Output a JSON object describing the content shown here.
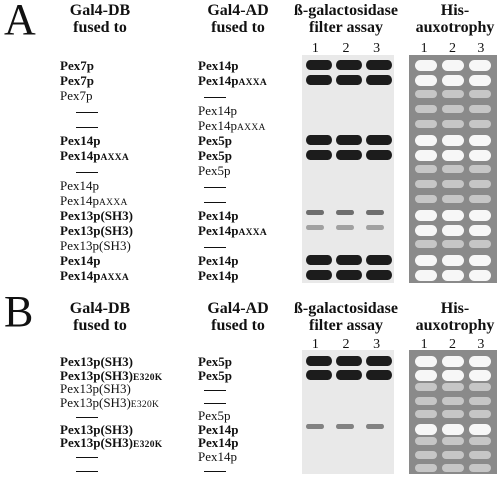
{
  "panel_a": {
    "letter": "A",
    "headers": {
      "db": [
        "Gal4-DB",
        "fused to"
      ],
      "ad": [
        "Gal4-AD",
        "fused to"
      ],
      "filter": [
        "ß-galactosidase",
        "filter assay"
      ],
      "his": [
        "His-",
        "auxotrophy"
      ]
    },
    "lanes": [
      "1",
      "2",
      "3"
    ],
    "rows": [
      {
        "db": "Pex7p",
        "db_suffix": "",
        "ad": "Pex14p",
        "ad_suffix": "",
        "bold": true,
        "filter": [
          1,
          1,
          1
        ],
        "his": [
          1,
          1,
          1
        ]
      },
      {
        "db": "Pex7p",
        "db_suffix": "",
        "ad": "Pex14p",
        "ad_suffix": "AXXA",
        "bold": true,
        "filter": [
          1,
          1,
          1
        ],
        "his": [
          1,
          1,
          1
        ]
      },
      {
        "db": "Pex7p",
        "db_suffix": "",
        "ad": "—",
        "ad_suffix": "",
        "bold": false,
        "filter": [
          0,
          0,
          0
        ],
        "his": [
          0.5,
          0.5,
          0.5
        ]
      },
      {
        "db": "—",
        "db_suffix": "",
        "ad": "Pex14p",
        "ad_suffix": "",
        "bold": false,
        "filter": [
          0,
          0,
          0
        ],
        "his": [
          0.5,
          0.5,
          0.5
        ]
      },
      {
        "db": "—",
        "db_suffix": "",
        "ad": "Pex14p",
        "ad_suffix": "AXXA",
        "bold": false,
        "filter": [
          0,
          0,
          0
        ],
        "his": [
          0.5,
          0.5,
          0.5
        ]
      },
      {
        "db": "Pex14p",
        "db_suffix": "",
        "ad": "Pex5p",
        "ad_suffix": "",
        "bold": true,
        "filter": [
          1,
          1,
          1
        ],
        "his": [
          1,
          1,
          1
        ]
      },
      {
        "db": "Pex14p",
        "db_suffix": "AXXA",
        "ad": "Pex5p",
        "ad_suffix": "",
        "bold": true,
        "filter": [
          1,
          1,
          1
        ],
        "his": [
          1,
          1,
          1
        ]
      },
      {
        "db": "—",
        "db_suffix": "",
        "ad": "Pex5p",
        "ad_suffix": "",
        "bold": false,
        "filter": [
          0,
          0,
          0
        ],
        "his": [
          0.5,
          0.5,
          0.5
        ]
      },
      {
        "db": "Pex14p",
        "db_suffix": "",
        "ad": "—",
        "ad_suffix": "",
        "bold": false,
        "filter": [
          0,
          0,
          0
        ],
        "his": [
          0.5,
          0.5,
          0.5
        ]
      },
      {
        "db": "Pex14p",
        "db_suffix": "AXXA",
        "ad": "—",
        "ad_suffix": "",
        "bold": false,
        "filter": [
          0,
          0,
          0
        ],
        "his": [
          0.5,
          0.5,
          0.5
        ]
      },
      {
        "db": "Pex13p(SH3)",
        "db_suffix": "",
        "ad": "Pex14p",
        "ad_suffix": "",
        "bold": true,
        "filter": [
          0.6,
          0.6,
          0.6
        ],
        "his": [
          1,
          1,
          1
        ]
      },
      {
        "db": "Pex13p(SH3)",
        "db_suffix": "",
        "ad": "Pex14p",
        "ad_suffix": "AXXA",
        "bold": true,
        "filter": [
          0.3,
          0.3,
          0.3
        ],
        "his": [
          1,
          1,
          1
        ]
      },
      {
        "db": "Pex13p(SH3)",
        "db_suffix": "",
        "ad": "—",
        "ad_suffix": "",
        "bold": false,
        "filter": [
          0,
          0,
          0
        ],
        "his": [
          0.5,
          0.5,
          0.5
        ]
      },
      {
        "db": "Pex14p",
        "db_suffix": "",
        "ad": "Pex14p",
        "ad_suffix": "",
        "bold": true,
        "filter": [
          1,
          1,
          1
        ],
        "his": [
          1,
          1,
          1
        ]
      },
      {
        "db": "Pex14p",
        "db_suffix": "AXXA",
        "ad": "Pex14p",
        "ad_suffix": "",
        "bold": true,
        "filter": [
          1,
          1,
          1
        ],
        "his": [
          1,
          1,
          1
        ]
      }
    ]
  },
  "panel_b": {
    "letter": "B",
    "headers": {
      "db": [
        "Gal4-DB",
        "fused to"
      ],
      "ad": [
        "Gal4-AD",
        "fused to"
      ],
      "filter": [
        "ß-galactosidase",
        "filter assay"
      ],
      "his": [
        "His-",
        "auxotrophy"
      ]
    },
    "lanes": [
      "1",
      "2",
      "3"
    ],
    "rows": [
      {
        "db": "Pex13p(SH3)",
        "db_suffix": "",
        "ad": "Pex5p",
        "ad_suffix": "",
        "bold": true,
        "filter": [
          1,
          1,
          1
        ],
        "his": [
          1,
          1,
          1
        ]
      },
      {
        "db": "Pex13p(SH3)",
        "db_suffix": "E320K",
        "ad": "Pex5p",
        "ad_suffix": "",
        "bold": true,
        "filter": [
          1,
          1,
          1
        ],
        "his": [
          1,
          1,
          1
        ]
      },
      {
        "db": "Pex13p(SH3)",
        "db_suffix": "",
        "ad": "—",
        "ad_suffix": "",
        "bold": false,
        "filter": [
          0,
          0,
          0
        ],
        "his": [
          0.6,
          0.6,
          0.6
        ]
      },
      {
        "db": "Pex13p(SH3)",
        "db_suffix": "E320K",
        "ad": "—",
        "ad_suffix": "",
        "bold": false,
        "filter": [
          0,
          0,
          0
        ],
        "his": [
          0.6,
          0.6,
          0.6
        ]
      },
      {
        "db": "—",
        "db_suffix": "",
        "ad": "Pex5p",
        "ad_suffix": "",
        "bold": false,
        "filter": [
          0,
          0,
          0
        ],
        "his": [
          0.6,
          0.6,
          0.6
        ]
      },
      {
        "db": "Pex13p(SH3)",
        "db_suffix": "",
        "ad": "Pex14p",
        "ad_suffix": "",
        "bold": true,
        "filter": [
          0.5,
          0.5,
          0.5
        ],
        "his": [
          1,
          1,
          1
        ]
      },
      {
        "db": "Pex13p(SH3)",
        "db_suffix": "E320K",
        "ad": "Pex14p",
        "ad_suffix": "",
        "bold": true,
        "filter": [
          0,
          0,
          0
        ],
        "his": [
          0.6,
          0.6,
          0.6
        ]
      },
      {
        "db": "—",
        "db_suffix": "",
        "ad": "Pex14p",
        "ad_suffix": "",
        "bold": false,
        "filter": [
          0,
          0,
          0
        ],
        "his": [
          0.6,
          0.6,
          0.6
        ]
      },
      {
        "db": "—",
        "db_suffix": "",
        "ad": "—",
        "ad_suffix": "",
        "bold": false,
        "filter": [
          0,
          0,
          0
        ],
        "his": [
          0.6,
          0.6,
          0.6
        ]
      }
    ]
  }
}
